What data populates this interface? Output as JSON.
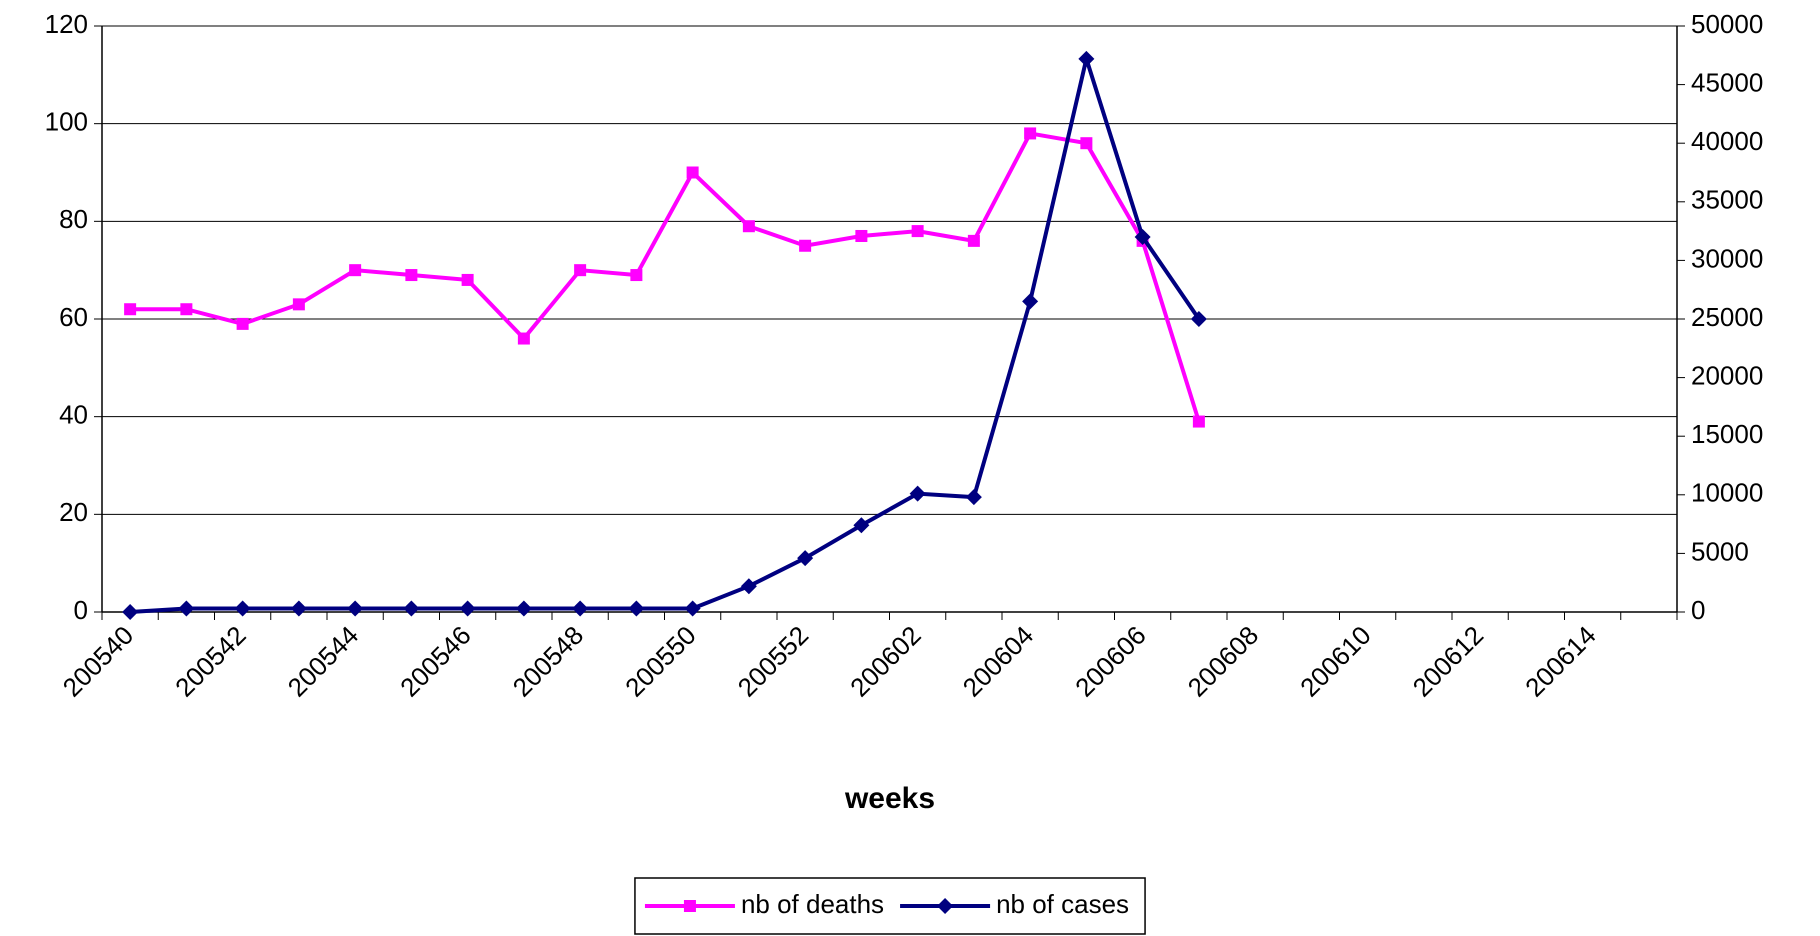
{
  "chart_data": {
    "type": "line",
    "x_label": "weeks",
    "categories": [
      "200540",
      null,
      "200542",
      null,
      "200544",
      null,
      "200546",
      null,
      "200548",
      null,
      "200550",
      null,
      "200552",
      null,
      "200602",
      null,
      "200604",
      null,
      "200606",
      null,
      "200608",
      null,
      "200610",
      null,
      "200612",
      null,
      "200614",
      null
    ],
    "series": [
      {
        "name": "nb of deaths",
        "color": "#ff00ff",
        "marker": "square",
        "values": [
          62,
          62,
          59,
          63,
          70,
          69,
          68,
          56,
          70,
          69,
          90,
          79,
          75,
          77,
          78,
          76,
          98,
          96,
          76,
          39,
          null,
          null,
          null,
          null,
          null,
          null,
          null,
          null
        ]
      },
      {
        "name": "nb of cases",
        "color": "#000080",
        "marker": "diamond",
        "axis": "y2",
        "values": [
          0,
          300,
          300,
          300,
          300,
          300,
          300,
          300,
          300,
          300,
          300,
          2200,
          4600,
          7400,
          10100,
          9800,
          26500,
          47200,
          32000,
          25000,
          null,
          null,
          null,
          null,
          null,
          null,
          null,
          null
        ]
      }
    ],
    "ylim": [
      0,
      120
    ],
    "yticks": [
      0,
      20,
      40,
      60,
      80,
      100,
      120
    ],
    "y2lim": [
      0,
      50000
    ],
    "y2ticks": [
      0,
      5000,
      10000,
      15000,
      20000,
      25000,
      30000,
      35000,
      40000,
      45000,
      50000
    ],
    "grid": true,
    "legend": "bottom"
  }
}
